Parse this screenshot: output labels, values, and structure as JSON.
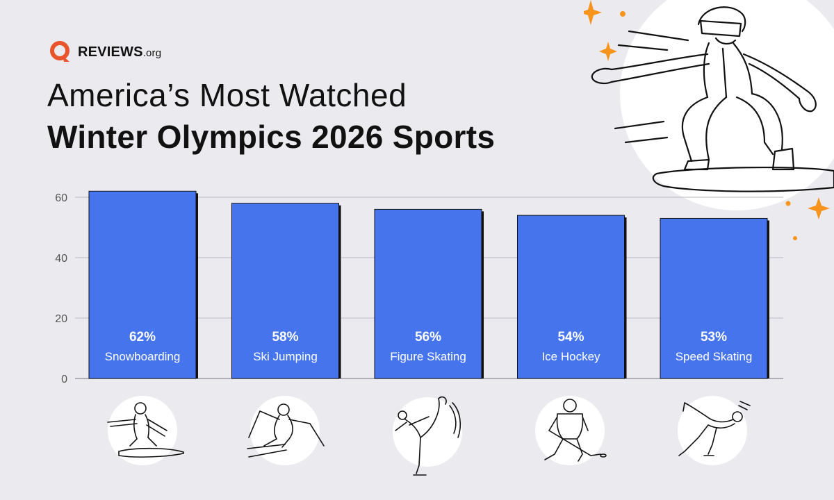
{
  "brand": {
    "name": "REVIEWS",
    "suffix": ".org",
    "color": "#e8542c"
  },
  "title": {
    "line1": "America’s Most Watched",
    "line2": "Winter Olympics 2026 Sports"
  },
  "chart_data": {
    "type": "bar",
    "categories": [
      "Snowboarding",
      "Ski Jumping",
      "Figure Skating",
      "Ice Hockey",
      "Speed Skating"
    ],
    "values": [
      62,
      58,
      56,
      54,
      53
    ],
    "value_labels": [
      "62%",
      "58%",
      "56%",
      "54%",
      "53%"
    ],
    "ylim": [
      0,
      60
    ],
    "yticks": [
      0,
      20,
      40,
      60
    ],
    "grid": true,
    "bar_color": "#4674ed",
    "title": "",
    "xlabel": "",
    "ylabel": ""
  },
  "icons": [
    "snowboarder-icon",
    "ski-jumper-icon",
    "figure-skater-icon",
    "hockey-player-icon",
    "speed-skater-icon"
  ],
  "accent": "#f7941d"
}
